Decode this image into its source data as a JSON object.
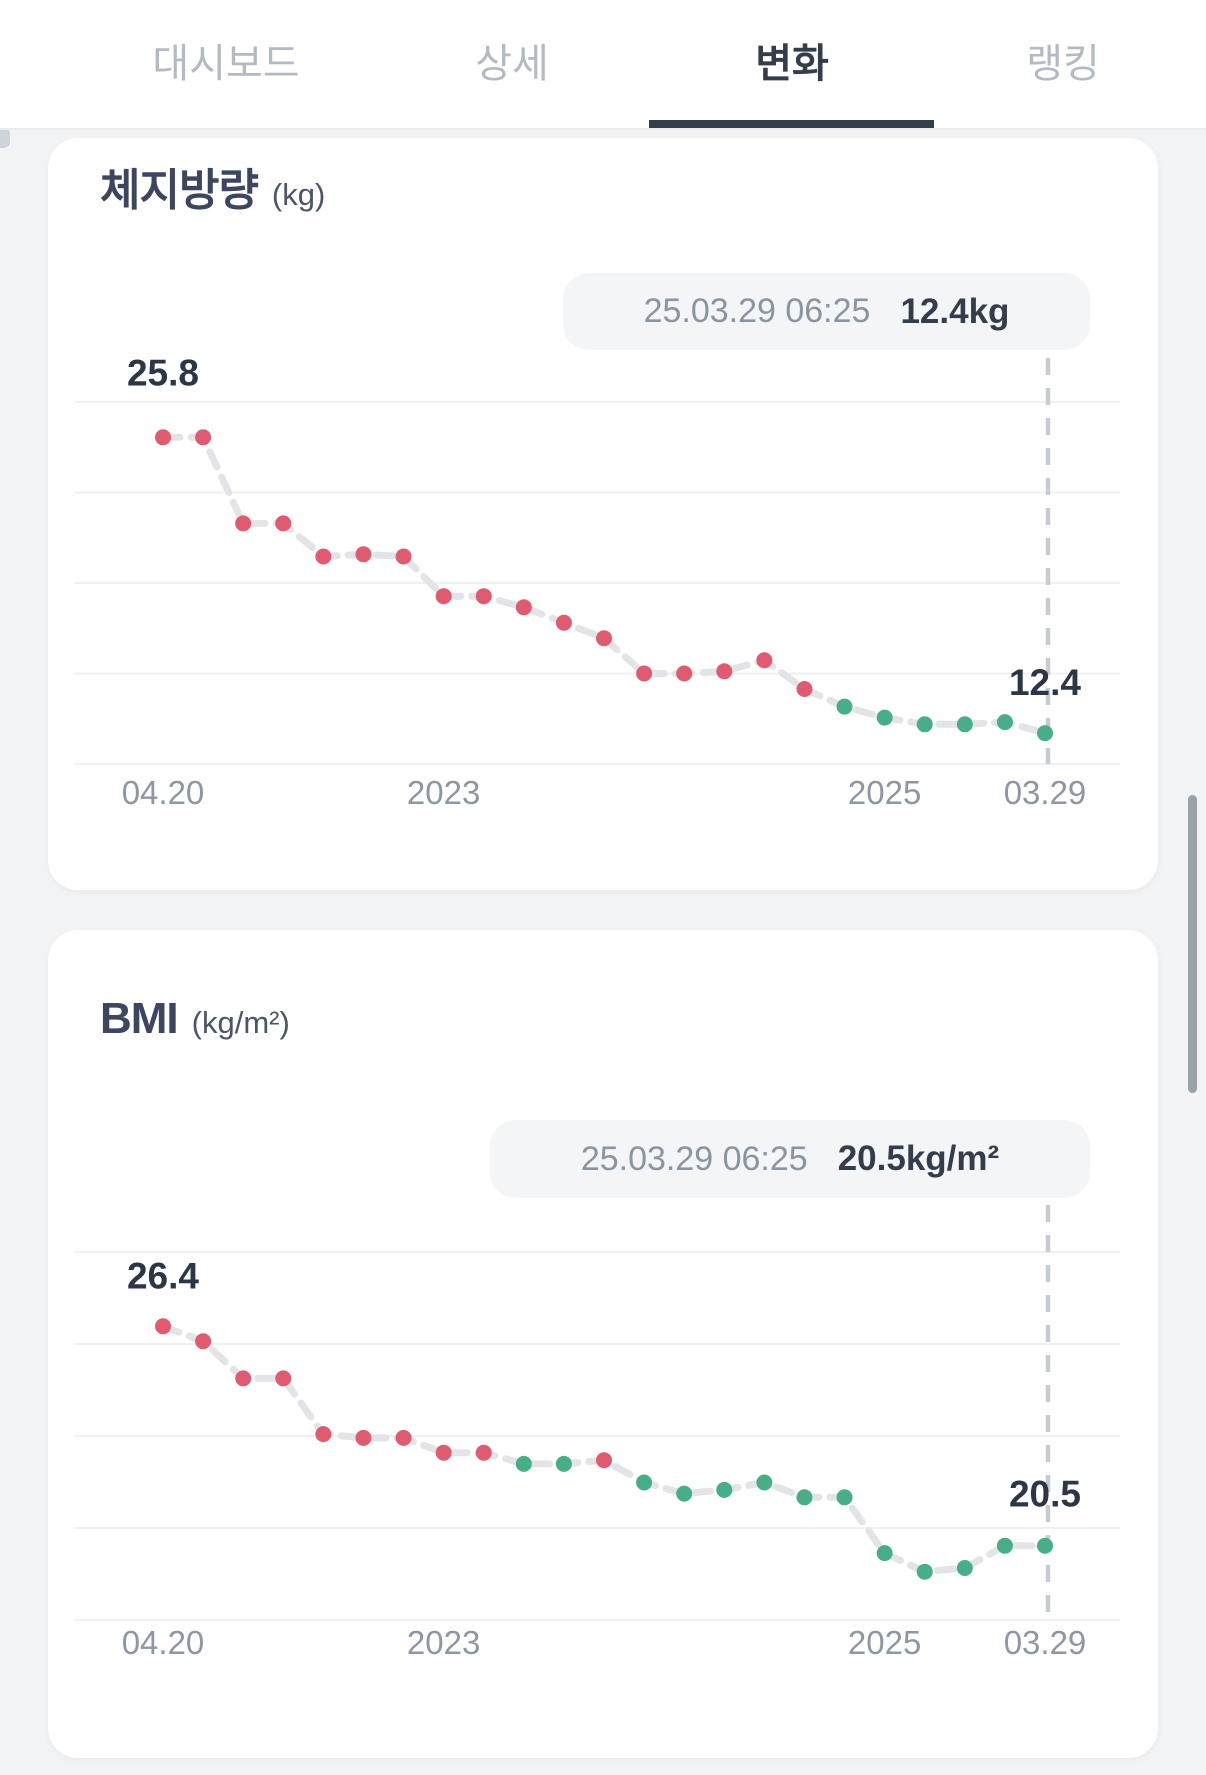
{
  "tabs": {
    "items": [
      {
        "label": "대시보드",
        "active": false
      },
      {
        "label": "상세",
        "active": false
      },
      {
        "label": "변화",
        "active": true
      },
      {
        "label": "랭킹",
        "active": false
      }
    ]
  },
  "colors": {
    "dot_red": "#e15b70",
    "dot_green": "#47ae88",
    "trend_line": "#e3e4e8",
    "gridline": "#eff0f2",
    "dash_line": "#c7ccd2",
    "tick_text": "#8d97a3",
    "point_label_text": "#2c3646",
    "accent_dark": "#333d4b"
  },
  "chart_data": [
    {
      "type": "line",
      "title": "체지방량",
      "unit": "(kg)",
      "tooltip": {
        "datetime": "25.03.29 06:25",
        "value": "12.4kg"
      },
      "first_point_label": "25.8",
      "last_point_label": "12.4",
      "ylabel": "체지방량 (kg)",
      "ylim": [
        11.0,
        27.4
      ],
      "grid": true,
      "x_ticks": [
        {
          "label": "04.20",
          "i": 0
        },
        {
          "label": "2023",
          "i": 7
        },
        {
          "label": "2025",
          "i": 18
        },
        {
          "label": "03.29",
          "i": 22
        }
      ],
      "values": [
        25.8,
        25.8,
        21.9,
        21.9,
        20.4,
        20.5,
        20.4,
        18.6,
        18.6,
        18.1,
        17.4,
        16.7,
        15.1,
        15.1,
        15.2,
        15.7,
        14.4,
        13.6,
        13.1,
        12.8,
        12.8,
        12.9,
        12.4
      ],
      "point_colors": [
        "red",
        "red",
        "red",
        "red",
        "red",
        "red",
        "red",
        "red",
        "red",
        "red",
        "red",
        "red",
        "red",
        "red",
        "red",
        "red",
        "red",
        "green",
        "green",
        "green",
        "green",
        "green",
        "green"
      ]
    },
    {
      "type": "line",
      "title": "BMI",
      "unit": "(kg/m²)",
      "tooltip": {
        "datetime": "25.03.29 06:25",
        "value": "20.5kg/m²"
      },
      "first_point_label": "26.4",
      "last_point_label": "20.5",
      "ylabel": "BMI (kg/m²)",
      "ylim": [
        18.5,
        28.4
      ],
      "grid": true,
      "x_ticks": [
        {
          "label": "04.20",
          "i": 0
        },
        {
          "label": "2023",
          "i": 7
        },
        {
          "label": "2025",
          "i": 18
        },
        {
          "label": "03.29",
          "i": 22
        }
      ],
      "values": [
        26.4,
        26.0,
        25.0,
        25.0,
        23.5,
        23.4,
        23.4,
        23.0,
        23.0,
        22.7,
        22.7,
        22.8,
        22.2,
        21.9,
        22.0,
        22.2,
        21.8,
        21.8,
        20.3,
        19.8,
        19.9,
        20.5,
        20.5
      ],
      "point_colors": [
        "red",
        "red",
        "red",
        "red",
        "red",
        "red",
        "red",
        "red",
        "red",
        "green",
        "green",
        "red",
        "green",
        "green",
        "green",
        "green",
        "green",
        "green",
        "green",
        "green",
        "green",
        "green",
        "green"
      ]
    }
  ]
}
